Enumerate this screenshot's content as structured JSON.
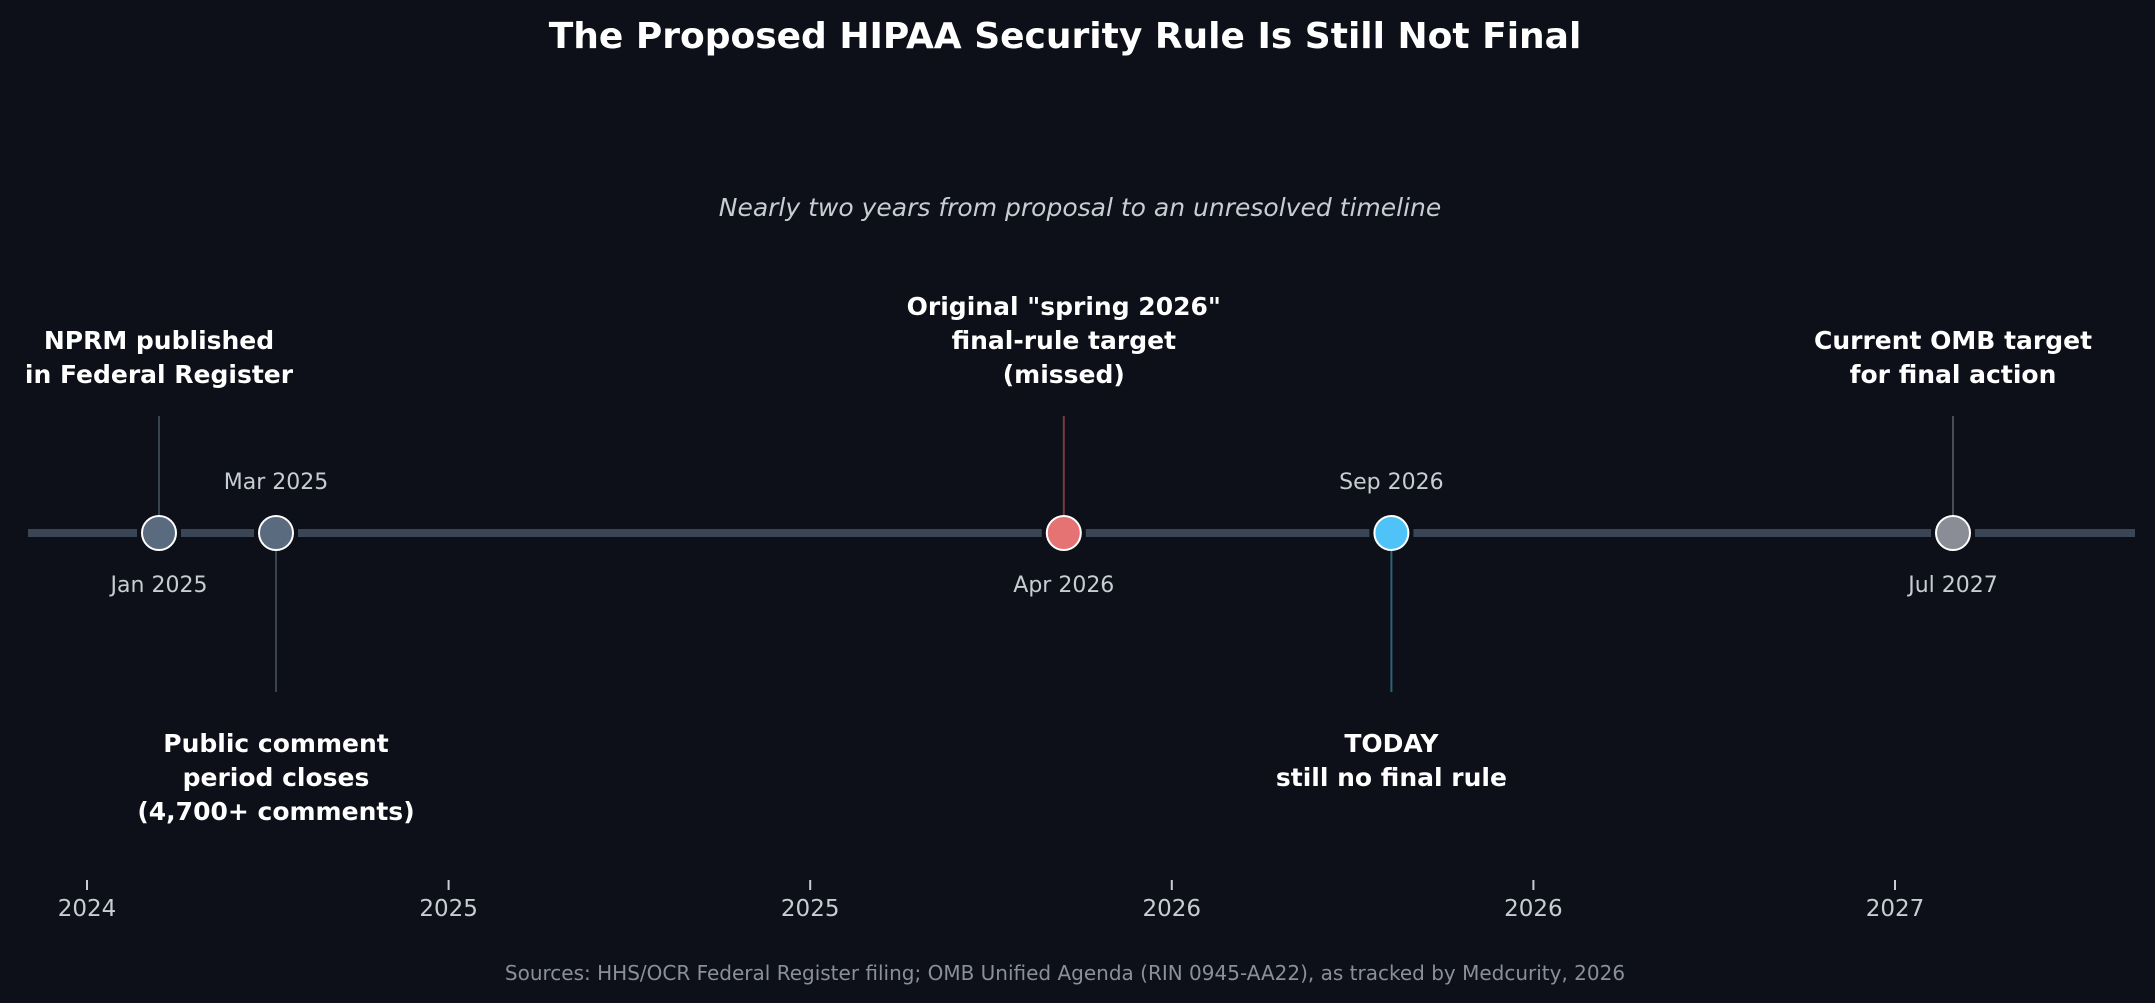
{
  "chart_data": {
    "type": "timeline",
    "title": "The Proposed HIPAA Security Rule Is Still Not Final",
    "subtitle": "Nearly two years from proposal to an unresolved timeline",
    "source": "Sources: HHS/OCR Federal Register filing; OMB Unified Agenda (RIN 0945-AA22), as tracked by Medcurity, 2026",
    "x_ticks": [
      "2024",
      "2025",
      "2025",
      "2026",
      "2026",
      "2027"
    ],
    "events": [
      {
        "date": "2025-01-06",
        "date_label": "Jan 2025",
        "label": [
          "NPRM published",
          "in Federal Register"
        ],
        "side": "above",
        "color": "#5a6b80",
        "stem_color": "#3a4350"
      },
      {
        "date": "2025-03-07",
        "date_label": "Mar 2025",
        "label": [
          "Public comment",
          "period closes",
          "(4,700+ comments)"
        ],
        "side": "below",
        "color": "#5a6b80",
        "stem_color": "#3a4350"
      },
      {
        "date": "2026-04-15",
        "date_label": "Apr 2026",
        "label": [
          "Original \"spring 2026\"",
          "final-rule target",
          "(missed)"
        ],
        "side": "above",
        "color": "#e57373",
        "stem_color": "#7a3c44"
      },
      {
        "date": "2026-09-30",
        "date_label": "Sep 2026",
        "label": [
          "TODAY",
          "still no final rule"
        ],
        "side": "below",
        "color": "#4fc3f7",
        "stem_color": "#2b6478"
      },
      {
        "date": "2027-07-15",
        "date_label": "Jul 2027",
        "label": [
          "Current OMB target",
          "for final action"
        ],
        "side": "above",
        "color": "#8b8d96",
        "stem_color": "#4a4d55"
      }
    ],
    "colors": {
      "background": "#0d1018",
      "axis_line": "#3a4656"
    }
  }
}
